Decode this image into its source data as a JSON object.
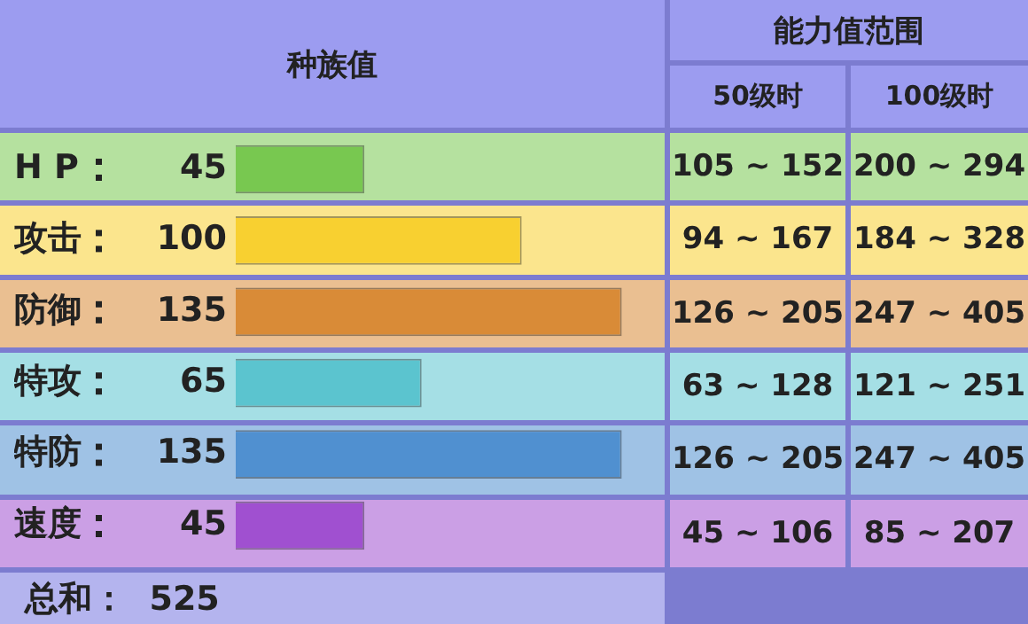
{
  "chart_data": {
    "type": "bar",
    "orientation": "horizontal",
    "categories": [
      "H P",
      "攻击",
      "防御",
      "特攻",
      "特防",
      "速度"
    ],
    "values": [
      45,
      100,
      135,
      65,
      135,
      45
    ],
    "colors": [
      "#78c850",
      "#f8d030",
      "#d98b37",
      "#5bc4cf",
      "#5090d0",
      "#a050d0"
    ],
    "data_labels": true,
    "grid": false,
    "legend": false,
    "tick_labels": "y",
    "annotations": [
      "种族值",
      "能力值范围",
      "50级时",
      "100级时",
      "105 ~ 152",
      "200 ~ 294",
      "94 ~ 167",
      "184 ~ 328",
      "126 ~ 205",
      "247 ~ 405",
      "63 ~ 128",
      "121 ~ 251",
      "126 ~ 205",
      "247 ~ 405",
      "45 ~ 106",
      "85 ~ 207",
      "总和：  525"
    ]
  }
}
